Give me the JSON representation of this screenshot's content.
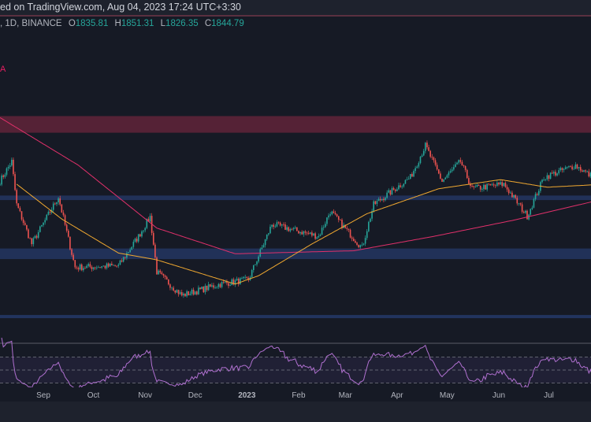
{
  "header": {
    "text": "ed on TradingView.com, Aug 04, 2023 17:24 UTC+3:30"
  },
  "legend": {
    "symbol": ", 1D, BINANCE",
    "o_label": "O",
    "o": "1835.81",
    "h_label": "H",
    "h": "1851.31",
    "l_label": "L",
    "l": "1826.35",
    "c_label": "C",
    "c": "1844.79",
    "indicator_fragment": "A"
  },
  "colors": {
    "bg": "#161a25",
    "up": "#26a69a",
    "down": "#ef5350",
    "ma50": "#f0a830",
    "ma200": "#e0306a",
    "rsi": "#b070d0",
    "resistance_zone": "#8a2a45",
    "support_zone": "#253a6a"
  },
  "chart_data": {
    "type": "candlestick",
    "interval": "1D",
    "xlim": [
      "2022-08-06",
      "2023-08-04"
    ],
    "ylim": [
      900,
      2400
    ],
    "x_tick_labels": [
      "Sep",
      "Oct",
      "Nov",
      "Dec",
      "2023",
      "Feb",
      "Mar",
      "Apr",
      "May",
      "Jun",
      "Jul"
    ],
    "x_tick_dates": [
      "2022-09-01",
      "2022-10-01",
      "2022-11-01",
      "2022-12-01",
      "2023-01-01",
      "2023-02-01",
      "2023-03-01",
      "2023-04-01",
      "2023-05-01",
      "2023-06-01",
      "2023-07-01"
    ],
    "key_closes": [
      [
        "2022-08-06",
        1880
      ],
      [
        "2022-08-13",
        2010
      ],
      [
        "2022-08-16",
        1725
      ],
      [
        "2022-08-25",
        1465
      ],
      [
        "2022-09-10",
        1775
      ],
      [
        "2022-09-20",
        1310
      ],
      [
        "2022-10-16",
        1320
      ],
      [
        "2022-10-28",
        1515
      ],
      [
        "2022-11-04",
        1645
      ],
      [
        "2022-11-08",
        1280
      ],
      [
        "2022-11-23",
        1125
      ],
      [
        "2022-12-16",
        1200
      ],
      [
        "2023-01-02",
        1230
      ],
      [
        "2023-01-16",
        1595
      ],
      [
        "2023-02-13",
        1515
      ],
      [
        "2023-02-20",
        1680
      ],
      [
        "2023-03-11",
        1440
      ],
      [
        "2023-03-18",
        1725
      ],
      [
        "2023-04-09",
        1905
      ],
      [
        "2023-04-18",
        2115
      ],
      [
        "2023-04-28",
        1880
      ],
      [
        "2023-05-09",
        2010
      ],
      [
        "2023-05-16",
        1830
      ],
      [
        "2023-06-04",
        1860
      ],
      [
        "2023-06-18",
        1650
      ],
      [
        "2023-06-28",
        1905
      ],
      [
        "2023-07-17",
        1985
      ],
      [
        "2023-08-04",
        1845
      ]
    ],
    "ma200": [
      [
        "2022-08-06",
        2300
      ],
      [
        "2022-09-22",
        1985
      ],
      [
        "2022-11-08",
        1570
      ],
      [
        "2022-12-25",
        1400
      ],
      [
        "2023-03-06",
        1420
      ],
      [
        "2023-04-23",
        1515
      ],
      [
        "2023-06-09",
        1620
      ],
      [
        "2023-08-04",
        1765
      ]
    ],
    "ma50": [
      [
        "2022-08-16",
        1860
      ],
      [
        "2022-09-12",
        1630
      ],
      [
        "2022-10-16",
        1405
      ],
      [
        "2022-11-08",
        1360
      ],
      [
        "2022-12-25",
        1200
      ],
      [
        "2023-01-08",
        1255
      ],
      [
        "2023-02-09",
        1465
      ],
      [
        "2023-03-14",
        1665
      ],
      [
        "2023-04-26",
        1830
      ],
      [
        "2023-06-02",
        1890
      ],
      [
        "2023-06-30",
        1840
      ],
      [
        "2023-08-04",
        1860
      ]
    ],
    "zones": [
      {
        "type": "resistance",
        "from": 2200,
        "to": 2310
      },
      {
        "type": "support",
        "from": 1755,
        "to": 1785
      },
      {
        "type": "support",
        "from": 1365,
        "to": 1435
      }
    ],
    "floor_line": 985,
    "rsi": {
      "period": 14,
      "levels": [
        70,
        50,
        30
      ],
      "ylim": [
        0,
        100
      ]
    }
  }
}
